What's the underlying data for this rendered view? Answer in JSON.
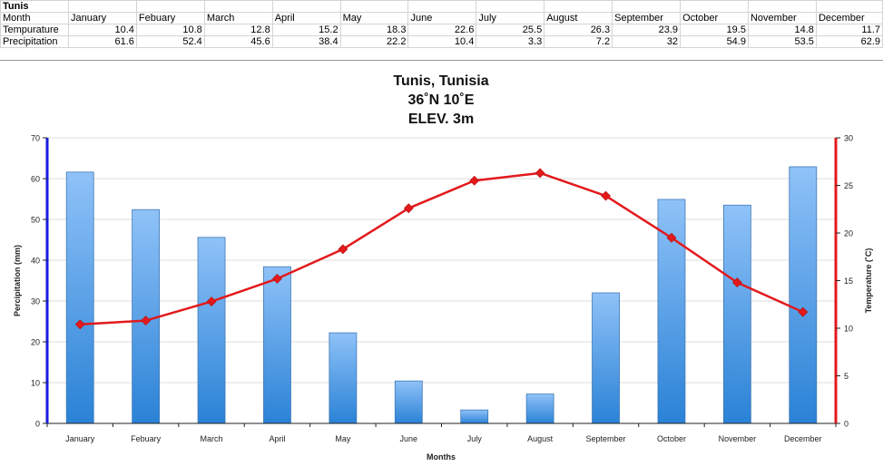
{
  "sheet": {
    "title": "Tunis",
    "row_labels": {
      "month": "Month",
      "temperature": "Tempurature",
      "precipitation": "Precipitation"
    },
    "months": [
      "January",
      "Febuary",
      "March",
      "April",
      "May",
      "June",
      "July",
      "August",
      "September",
      "October",
      "November",
      "December"
    ],
    "temperature": [
      "10.4",
      "10.8",
      "12.8",
      "15.2",
      "18.3",
      "22.6",
      "25.5",
      "26.3",
      "23.9",
      "19.5",
      "14.8",
      "11.7"
    ],
    "precipitation": [
      "61.6",
      "52.4",
      "45.6",
      "38.4",
      "22.2",
      "10.4",
      "3.3",
      "7.2",
      "32",
      "54.9",
      "53.5",
      "62.9"
    ]
  },
  "chart_data": {
    "type": "bar",
    "title_lines": [
      "Tunis, Tunisia",
      "36˚N 10˚E",
      "ELEV. 3m"
    ],
    "xlabel": "Months",
    "ylabel": "Percipitation (mm)",
    "y2label": "Temperature (˚C)",
    "categories": [
      "January",
      "Febuary",
      "March",
      "April",
      "May",
      "June",
      "July",
      "August",
      "September",
      "October",
      "November",
      "December"
    ],
    "ylim": [
      0,
      70
    ],
    "y_ticks": [
      0,
      10,
      20,
      30,
      40,
      50,
      60,
      70
    ],
    "y2lim": [
      0,
      30
    ],
    "y2_ticks": [
      0,
      5,
      10,
      15,
      20,
      25,
      30
    ],
    "grid": "horizontal",
    "series": [
      {
        "type": "bar",
        "axis": "left",
        "values": [
          61.6,
          52.4,
          45.6,
          38.4,
          22.2,
          10.4,
          3.3,
          7.2,
          32,
          54.9,
          53.5,
          62.9
        ],
        "color_top": "#8fc2f8",
        "color_bottom": "#2a82d6"
      },
      {
        "type": "line",
        "axis": "right",
        "values": [
          10.4,
          10.8,
          12.8,
          15.2,
          18.3,
          22.6,
          25.5,
          26.3,
          23.9,
          19.5,
          14.8,
          11.7
        ],
        "color": "#e3191c"
      }
    ],
    "left_axis_color": "#1a1ae0",
    "right_axis_color": "#e3191c"
  }
}
